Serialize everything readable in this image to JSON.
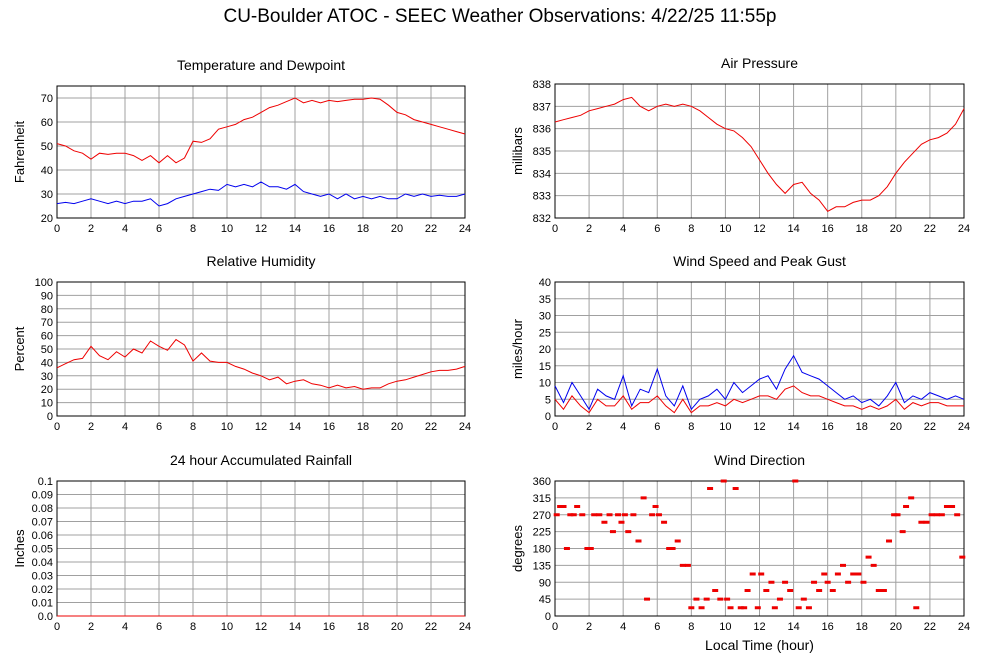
{
  "page": {
    "title": "CU-Boulder ATOC - SEEC Weather Observations: 4/22/25 11:55p"
  },
  "colors": {
    "red": "#ee0000",
    "blue": "#0000ee",
    "grid": "#a0a0a0"
  },
  "chart_data": [
    {
      "id": "temp",
      "type": "line",
      "title": "Temperature and Dewpoint",
      "ylabel": "Fahrenheit",
      "xlabel": "",
      "xlim": [
        0,
        24
      ],
      "ylim": [
        20,
        75
      ],
      "xticks": [
        0,
        2,
        4,
        6,
        8,
        10,
        12,
        14,
        16,
        18,
        20,
        22,
        24
      ],
      "yticks": [
        20,
        30,
        40,
        50,
        60,
        70
      ],
      "grid": true,
      "series": [
        {
          "color": "#ee0000",
          "x": [
            0,
            0.5,
            1,
            1.5,
            2,
            2.5,
            3,
            3.5,
            4,
            4.5,
            5,
            5.5,
            6,
            6.5,
            7,
            7.5,
            8,
            8.5,
            9,
            9.5,
            10,
            10.5,
            11,
            11.5,
            12,
            12.5,
            13,
            13.5,
            14,
            14.5,
            15,
            15.5,
            16,
            16.5,
            17,
            17.5,
            18,
            18.5,
            19,
            19.5,
            20,
            20.5,
            21,
            21.5,
            22,
            22.5,
            23,
            23.5,
            24
          ],
          "y": [
            51,
            50,
            48,
            47,
            44.5,
            47,
            46.5,
            47,
            47,
            46,
            44,
            46,
            43,
            46,
            43,
            45,
            52,
            51.5,
            53,
            57,
            58,
            59,
            61,
            62,
            64,
            66,
            67,
            68.5,
            70,
            68,
            69,
            68,
            69,
            68.5,
            69,
            69.5,
            69.5,
            70,
            69.5,
            67,
            64,
            63,
            61,
            60,
            59,
            58,
            57,
            56,
            55
          ]
        },
        {
          "color": "#0000ee",
          "x": [
            0,
            0.5,
            1,
            1.5,
            2,
            2.5,
            3,
            3.5,
            4,
            4.5,
            5,
            5.5,
            6,
            6.5,
            7,
            7.5,
            8,
            8.5,
            9,
            9.5,
            10,
            10.5,
            11,
            11.5,
            12,
            12.5,
            13,
            13.5,
            14,
            14.5,
            15,
            15.5,
            16,
            16.5,
            17,
            17.5,
            18,
            18.5,
            19,
            19.5,
            20,
            20.5,
            21,
            21.5,
            22,
            22.5,
            23,
            23.5,
            24
          ],
          "y": [
            26,
            26.5,
            26,
            27,
            28,
            27,
            26,
            27,
            26,
            27,
            27,
            28,
            25,
            26,
            28,
            29,
            30,
            31,
            32,
            31.5,
            34,
            33,
            34,
            33,
            35,
            33,
            33,
            32,
            34,
            31,
            30,
            29,
            30,
            28,
            30,
            28,
            29,
            28,
            29,
            28,
            28,
            30,
            29,
            30,
            29,
            29.5,
            29,
            29,
            30
          ]
        }
      ]
    },
    {
      "id": "pressure",
      "type": "line",
      "title": "Air Pressure",
      "ylabel": "millibars",
      "xlabel": "",
      "xlim": [
        0,
        24
      ],
      "ylim": [
        832,
        838
      ],
      "xticks": [
        0,
        2,
        4,
        6,
        8,
        10,
        12,
        14,
        16,
        18,
        20,
        22,
        24
      ],
      "yticks": [
        832,
        833,
        834,
        835,
        836,
        837,
        838
      ],
      "grid": true,
      "series": [
        {
          "color": "#ee0000",
          "x": [
            0,
            0.5,
            1,
            1.5,
            2,
            2.5,
            3,
            3.5,
            4,
            4.5,
            5,
            5.5,
            6,
            6.5,
            7,
            7.5,
            8,
            8.5,
            9,
            9.5,
            10,
            10.5,
            11,
            11.5,
            12,
            12.5,
            13,
            13.5,
            14,
            14.5,
            15,
            15.5,
            16,
            16.5,
            17,
            17.5,
            18,
            18.5,
            19,
            19.5,
            20,
            20.5,
            21,
            21.5,
            22,
            22.5,
            23,
            23.5,
            24
          ],
          "y": [
            836.3,
            836.4,
            836.5,
            836.6,
            836.8,
            836.9,
            837.0,
            837.1,
            837.3,
            837.4,
            837.0,
            836.8,
            837.0,
            837.1,
            837.0,
            837.1,
            837.0,
            836.8,
            836.5,
            836.2,
            836.0,
            835.9,
            835.6,
            835.2,
            834.6,
            834.0,
            833.5,
            833.1,
            833.5,
            833.6,
            833.1,
            832.8,
            832.3,
            832.5,
            832.5,
            832.7,
            832.8,
            832.8,
            833.0,
            833.4,
            834.0,
            834.5,
            834.9,
            835.3,
            835.5,
            835.6,
            835.8,
            836.2,
            836.9
          ]
        }
      ]
    },
    {
      "id": "humidity",
      "type": "line",
      "title": "Relative Humidity",
      "ylabel": "Percent",
      "xlabel": "",
      "xlim": [
        0,
        24
      ],
      "ylim": [
        0,
        100
      ],
      "xticks": [
        0,
        2,
        4,
        6,
        8,
        10,
        12,
        14,
        16,
        18,
        20,
        22,
        24
      ],
      "yticks": [
        0,
        10,
        20,
        30,
        40,
        50,
        60,
        70,
        80,
        90,
        100
      ],
      "grid": true,
      "series": [
        {
          "color": "#ee0000",
          "x": [
            0,
            0.5,
            1,
            1.5,
            2,
            2.5,
            3,
            3.5,
            4,
            4.5,
            5,
            5.5,
            6,
            6.5,
            7,
            7.5,
            8,
            8.5,
            9,
            9.5,
            10,
            10.5,
            11,
            11.5,
            12,
            12.5,
            13,
            13.5,
            14,
            14.5,
            15,
            15.5,
            16,
            16.5,
            17,
            17.5,
            18,
            18.5,
            19,
            19.5,
            20,
            20.5,
            21,
            21.5,
            22,
            22.5,
            23,
            23.5,
            24
          ],
          "y": [
            36,
            39,
            42,
            43,
            52,
            45,
            42,
            48,
            44,
            50,
            47,
            56,
            52,
            49,
            57,
            53,
            41,
            47,
            41,
            40,
            40,
            37,
            35,
            32,
            30,
            27,
            29,
            24,
            26,
            27,
            24,
            23,
            21,
            23,
            21,
            22,
            20,
            21,
            21,
            24,
            26,
            27,
            29,
            31,
            33,
            34,
            34,
            35,
            37
          ]
        }
      ]
    },
    {
      "id": "wind",
      "type": "line",
      "title": "Wind Speed and Peak Gust",
      "ylabel": "miles/hour",
      "xlabel": "",
      "xlim": [
        0,
        24
      ],
      "ylim": [
        0,
        40
      ],
      "xticks": [
        0,
        2,
        4,
        6,
        8,
        10,
        12,
        14,
        16,
        18,
        20,
        22,
        24
      ],
      "yticks": [
        0,
        5,
        10,
        15,
        20,
        25,
        30,
        35,
        40
      ],
      "grid": true,
      "series": [
        {
          "color": "#0000ee",
          "x": [
            0,
            0.5,
            1,
            1.5,
            2,
            2.5,
            3,
            3.5,
            4,
            4.5,
            5,
            5.5,
            6,
            6.5,
            7,
            7.5,
            8,
            8.5,
            9,
            9.5,
            10,
            10.5,
            11,
            11.5,
            12,
            12.5,
            13,
            13.5,
            14,
            14.5,
            15,
            15.5,
            16,
            16.5,
            17,
            17.5,
            18,
            18.5,
            19,
            19.5,
            20,
            20.5,
            21,
            21.5,
            22,
            22.5,
            23,
            23.5,
            24
          ],
          "y": [
            9,
            4,
            10,
            6,
            2,
            8,
            6,
            5,
            12,
            3,
            8,
            7,
            14,
            6,
            3,
            9,
            2,
            5,
            6,
            8,
            5,
            10,
            7,
            9,
            11,
            12,
            8,
            14,
            18,
            13,
            12,
            11,
            9,
            7,
            5,
            6,
            4,
            5,
            3,
            6,
            10,
            4,
            6,
            5,
            7,
            6,
            5,
            6,
            5
          ]
        },
        {
          "color": "#ee0000",
          "x": [
            0,
            0.5,
            1,
            1.5,
            2,
            2.5,
            3,
            3.5,
            4,
            4.5,
            5,
            5.5,
            6,
            6.5,
            7,
            7.5,
            8,
            8.5,
            9,
            9.5,
            10,
            10.5,
            11,
            11.5,
            12,
            12.5,
            13,
            13.5,
            14,
            14.5,
            15,
            15.5,
            16,
            16.5,
            17,
            17.5,
            18,
            18.5,
            19,
            19.5,
            20,
            20.5,
            21,
            21.5,
            22,
            22.5,
            23,
            23.5,
            24
          ],
          "y": [
            5,
            2,
            6,
            3,
            1,
            5,
            3,
            3,
            6,
            2,
            4,
            4,
            6,
            3,
            1,
            5,
            1,
            3,
            3,
            4,
            3,
            5,
            4,
            5,
            6,
            6,
            5,
            8,
            9,
            7,
            6,
            6,
            5,
            4,
            3,
            3,
            2,
            3,
            2,
            3,
            5,
            2,
            4,
            3,
            4,
            4,
            3,
            3,
            3
          ]
        }
      ]
    },
    {
      "id": "rain",
      "type": "line",
      "title": "24 hour Accumulated Rainfall",
      "ylabel": "Inches",
      "xlabel": "",
      "xlim": [
        0,
        24
      ],
      "ylim": [
        0,
        0.1
      ],
      "xticks": [
        0,
        2,
        4,
        6,
        8,
        10,
        12,
        14,
        16,
        18,
        20,
        22,
        24
      ],
      "yticks": [
        0.0,
        0.01,
        0.02,
        0.03,
        0.04,
        0.05,
        0.06,
        0.07,
        0.08,
        0.09,
        0.1
      ],
      "ytick_labels": [
        "0.0",
        "0.01",
        "0.02",
        "0.03",
        "0.04",
        "0.05",
        "0.06",
        "0.07",
        "0.08",
        "0.09",
        "0.1"
      ],
      "grid": true,
      "series": [
        {
          "color": "#ee0000",
          "x": [
            0,
            24
          ],
          "y": [
            0,
            0
          ]
        }
      ]
    },
    {
      "id": "direction",
      "type": "scatter",
      "title": "Wind Direction",
      "ylabel": "degrees",
      "xlabel": "Local Time (hour)",
      "xlim": [
        0,
        24
      ],
      "ylim": [
        0,
        360
      ],
      "xticks": [
        0,
        2,
        4,
        6,
        8,
        10,
        12,
        14,
        16,
        18,
        20,
        22,
        24
      ],
      "yticks": [
        0,
        45,
        90,
        135,
        180,
        225,
        270,
        315,
        360
      ],
      "grid": true,
      "series": [
        {
          "color": "#ee0000",
          "x": [
            0.1,
            0.3,
            0.5,
            0.7,
            0.9,
            1.1,
            1.3,
            1.6,
            1.9,
            2.1,
            2.3,
            2.6,
            2.9,
            3.2,
            3.4,
            3.7,
            3.9,
            4.1,
            4.3,
            4.6,
            4.9,
            5.2,
            5.4,
            5.7,
            5.9,
            6.1,
            6.4,
            6.7,
            6.9,
            7.2,
            7.5,
            7.8,
            8.0,
            8.3,
            8.6,
            8.9,
            9.1,
            9.4,
            9.7,
            9.9,
            10.1,
            10.3,
            10.6,
            10.9,
            11.1,
            11.3,
            11.6,
            11.9,
            12.1,
            12.4,
            12.7,
            12.9,
            13.2,
            13.5,
            13.8,
            14.1,
            14.3,
            14.6,
            14.9,
            15.2,
            15.5,
            15.8,
            16.0,
            16.3,
            16.6,
            16.9,
            17.2,
            17.5,
            17.8,
            18.1,
            18.4,
            18.7,
            19.0,
            19.3,
            19.6,
            19.9,
            20.1,
            20.4,
            20.6,
            20.9,
            21.2,
            21.5,
            21.8,
            22.1,
            22.4,
            22.7,
            23.0,
            23.3,
            23.6,
            23.9
          ],
          "y": [
            270,
            292,
            292,
            180,
            270,
            270,
            292,
            270,
            180,
            180,
            270,
            270,
            250,
            270,
            225,
            270,
            250,
            270,
            225,
            270,
            200,
            315,
            45,
            270,
            292,
            270,
            250,
            180,
            180,
            200,
            135,
            135,
            22,
            45,
            22,
            45,
            340,
            68,
            45,
            360,
            45,
            22,
            340,
            22,
            22,
            68,
            112,
            22,
            112,
            68,
            90,
            22,
            45,
            90,
            68,
            360,
            22,
            45,
            22,
            90,
            68,
            112,
            90,
            68,
            112,
            135,
            90,
            112,
            112,
            90,
            157,
            135,
            68,
            68,
            200,
            270,
            270,
            225,
            292,
            315,
            22,
            250,
            250,
            270,
            270,
            270,
            292,
            292,
            270,
            157
          ]
        }
      ]
    }
  ]
}
